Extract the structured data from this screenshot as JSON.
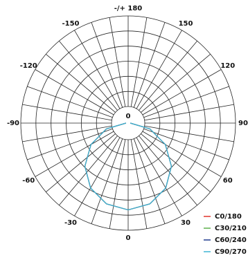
{
  "chart_data": {
    "type": "polar",
    "angle_ticks": [
      {
        "value": 180,
        "label": "-/+ 180"
      },
      150,
      120,
      90,
      60,
      30,
      0,
      -30,
      -60,
      -90,
      -120,
      -150
    ],
    "origin_label": "0",
    "rlim": [
      0,
      100
    ],
    "x": [
      -90,
      -75,
      -60,
      -45,
      -30,
      -15,
      0,
      15,
      30,
      45,
      60,
      75,
      90
    ],
    "series": [
      {
        "name": "C0/180",
        "color": "#e0342c",
        "values": [
          2,
          21,
          40,
          57,
          70,
          78,
          81,
          78,
          70,
          57,
          40,
          21,
          2
        ]
      },
      {
        "name": "C30/210",
        "color": "#5cb04a",
        "values": [
          2,
          21,
          40,
          57,
          70,
          78,
          81,
          78,
          70,
          57,
          40,
          21,
          2
        ]
      },
      {
        "name": "C60/240",
        "color": "#1f3a8f",
        "values": [
          2,
          21,
          40,
          57,
          70,
          78,
          81,
          78,
          70,
          57,
          40,
          21,
          2
        ]
      },
      {
        "name": "C90/270",
        "color": "#3db4d4",
        "values": [
          2,
          21,
          40,
          57,
          70,
          78,
          81,
          78,
          70,
          57,
          40,
          21,
          2
        ]
      }
    ],
    "legend": "bottom-right"
  }
}
